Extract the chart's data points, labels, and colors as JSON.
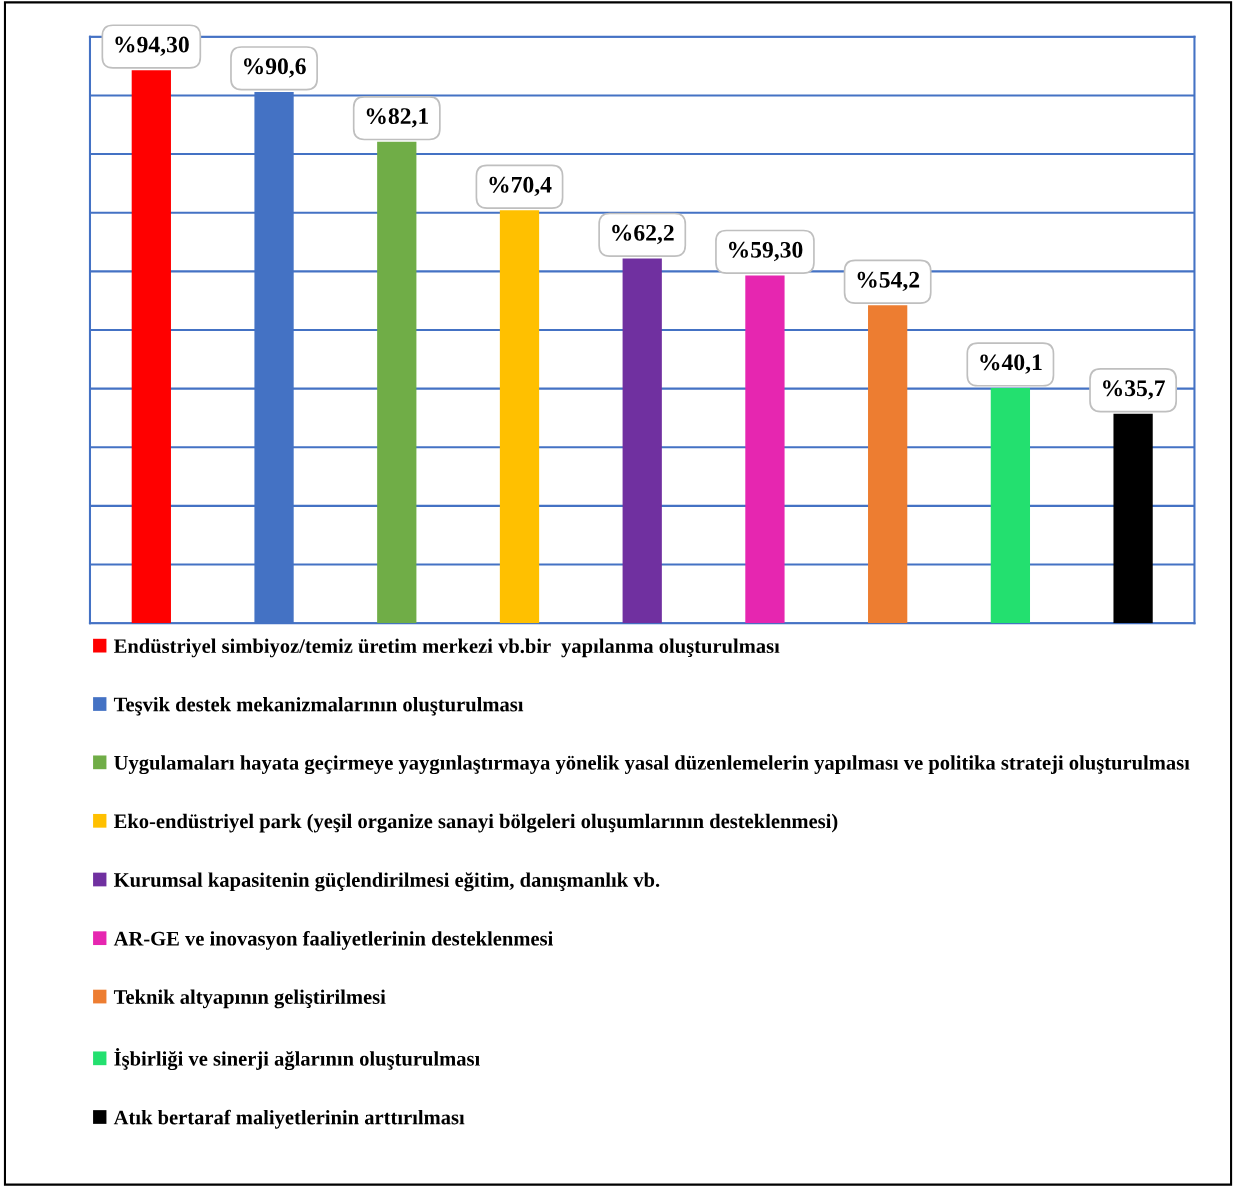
{
  "chart_data": {
    "type": "bar",
    "categories": [
      null,
      null,
      null,
      null,
      null,
      null,
      null,
      null,
      null
    ],
    "stacked": true,
    "series": [
      {
        "name": "Endüstriyel simbiyoz/temiz üretim merkezi vb.bir  yapılanma oluşturulması",
        "color": "#ff0000",
        "values": [
          94.3,
          0,
          0,
          0,
          0,
          0,
          0,
          0,
          0
        ],
        "value_labels": [
          "%94,30",
          null,
          null,
          null,
          null,
          null,
          null,
          null,
          null
        ]
      },
      {
        "name": "Teşvik destek mekanizmalarının oluşturulması",
        "color": "#4472c4",
        "values": [
          0,
          90.6,
          0,
          0,
          0,
          0,
          0,
          0,
          0
        ],
        "value_labels": [
          null,
          "%90,6",
          null,
          null,
          null,
          null,
          null,
          null,
          null
        ]
      },
      {
        "name": "Uygulamaları hayata geçirmeye yaygınlaştırmaya yönelik yasal düzenlemelerin yapılması ve politika strateji oluşturulması",
        "color": "#70ad47",
        "values": [
          0,
          0,
          82.1,
          0,
          0,
          0,
          0,
          0,
          0
        ],
        "value_labels": [
          null,
          null,
          "%82,1",
          null,
          null,
          null,
          null,
          null,
          null
        ]
      },
      {
        "name": "Eko-endüstriyel park (yeşil organize sanayi bölgeleri oluşumlarının desteklenmesi)",
        "color": "#ffc000",
        "values": [
          0,
          0,
          0,
          70.4,
          0,
          0,
          0,
          0,
          0
        ],
        "value_labels": [
          null,
          null,
          null,
          "%70,4",
          null,
          null,
          null,
          null,
          null
        ]
      },
      {
        "name": "Kurumsal kapasitenin güçlendirilmesi eğitim, danışmanlık vb.",
        "color": "#7030a0",
        "values": [
          0,
          0,
          0,
          0,
          62.2,
          0,
          0,
          0,
          0
        ],
        "value_labels": [
          null,
          null,
          null,
          null,
          "%62,2",
          null,
          null,
          null,
          null
        ]
      },
      {
        "name": "AR-GE ve inovasyon faaliyetlerinin desteklenmesi",
        "color": "#e626b0",
        "values": [
          0,
          0,
          0,
          0,
          0,
          59.3,
          0,
          0,
          0
        ],
        "value_labels": [
          null,
          null,
          null,
          null,
          null,
          "%59,30",
          null,
          null,
          null
        ]
      },
      {
        "name": "Teknik altyapının geliştirilmesi",
        "color": "#ed7d31",
        "values": [
          0,
          0,
          0,
          0,
          0,
          0,
          54.2,
          0,
          0
        ],
        "value_labels": [
          null,
          null,
          null,
          null,
          null,
          null,
          "%54,2",
          null,
          null
        ]
      },
      {
        "name": "İşbirliği ve sinerji ağlarının oluşturulması",
        "color": "#23e06f",
        "values": [
          0,
          0,
          0,
          0,
          0,
          0,
          0,
          40.1,
          0
        ],
        "value_labels": [
          null,
          null,
          null,
          null,
          null,
          null,
          null,
          "%40,1",
          null
        ]
      },
      {
        "name": "Atık bertaraf maliyetlerinin arttırılması",
        "color": "#000000",
        "values": [
          0,
          0,
          0,
          0,
          0,
          0,
          0,
          0,
          35.7
        ],
        "value_labels": [
          null,
          null,
          null,
          null,
          null,
          null,
          null,
          null,
          "%35,7"
        ]
      }
    ],
    "ylim": [
      0,
      100
    ],
    "yticks": [
      {
        "value": 0,
        "label": null
      },
      {
        "value": 10,
        "label": null
      },
      {
        "value": 20,
        "label": null
      },
      {
        "value": 30,
        "label": null
      },
      {
        "value": 40,
        "label": null
      },
      {
        "value": 50,
        "label": null
      },
      {
        "value": 60,
        "label": null
      },
      {
        "value": 70,
        "label": null
      },
      {
        "value": 80,
        "label": null
      },
      {
        "value": 90,
        "label": null
      },
      {
        "value": 100,
        "label": null
      }
    ],
    "grid": "y",
    "legend": "bottom"
  }
}
